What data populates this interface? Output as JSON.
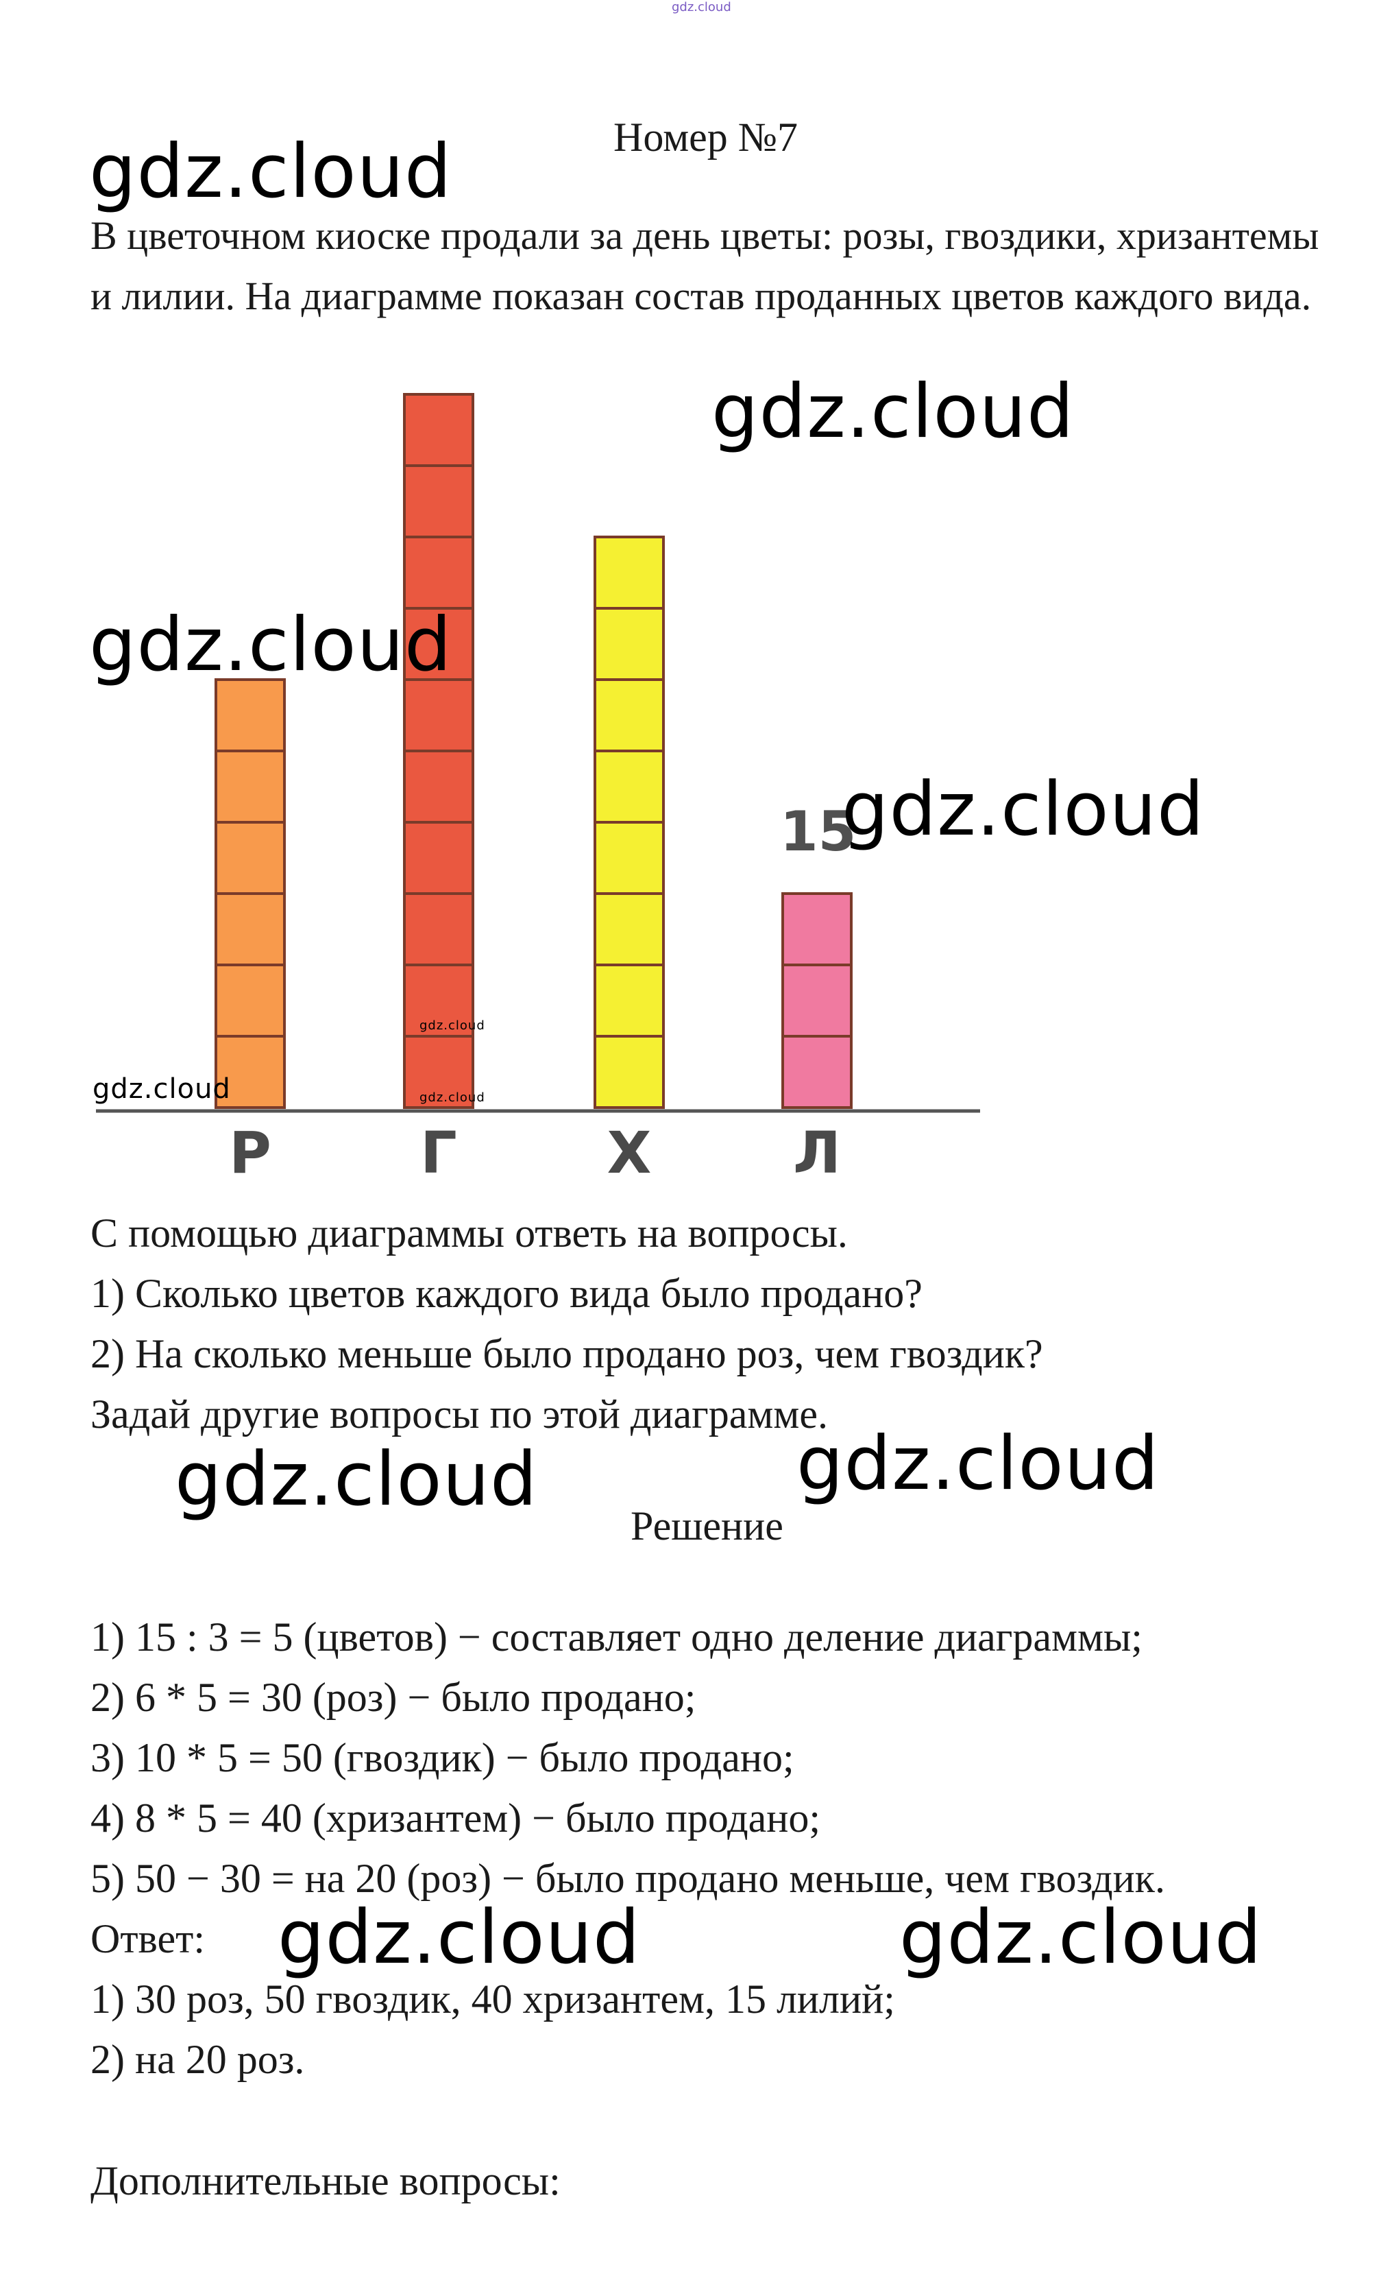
{
  "header_watermark": "gdz.cloud",
  "title": "Номер №7",
  "problem": {
    "text": "В цветочном киоске продали за день цветы: розы, гвоздики, хризантемы и лилии. На диаграмме показан состав проданных цветов каждого вида."
  },
  "chart_data": {
    "type": "bar",
    "categories": [
      "Р",
      "Г",
      "Х",
      "Л"
    ],
    "values": [
      6,
      10,
      8,
      3
    ],
    "colors": [
      "#f89a4c",
      "#ea5840",
      "#f5f032",
      "#f07aa0"
    ],
    "annotation": "15",
    "annotation_category": "Л",
    "units_note": "each bar drawn as stacked squares"
  },
  "questions": {
    "intro": "С помощью диаграммы ответь на вопросы.",
    "q1": "1) Сколько цветов каждого вида было продано?",
    "q2": "2) На сколько меньше было продано роз, чем гвоздик?",
    "extra": "Задай другие вопросы по этой диаграмме."
  },
  "solution": {
    "heading": "Решение",
    "steps": [
      "1) 15 : 3 = 5 (цветов) − составляет одно деление диаграммы;",
      "2) 6 * 5 = 30 (роз) − было продано;",
      "3) 10 * 5 = 50 (гвоздик) − было продано;",
      "4) 8 * 5 = 40 (хризантем) − было продано;",
      "5) 50 − 30 = на 20 (роз) − было продано меньше, чем гвоздик."
    ],
    "answer_label": "Ответ:",
    "answers": [
      "1) 30 роз, 50 гвоздик, 40 хризантем, 15 лилий;",
      "2) на 20 роз."
    ],
    "additional": "Дополнительные вопросы:"
  },
  "watermarks": {
    "text": "gdz.cloud"
  }
}
